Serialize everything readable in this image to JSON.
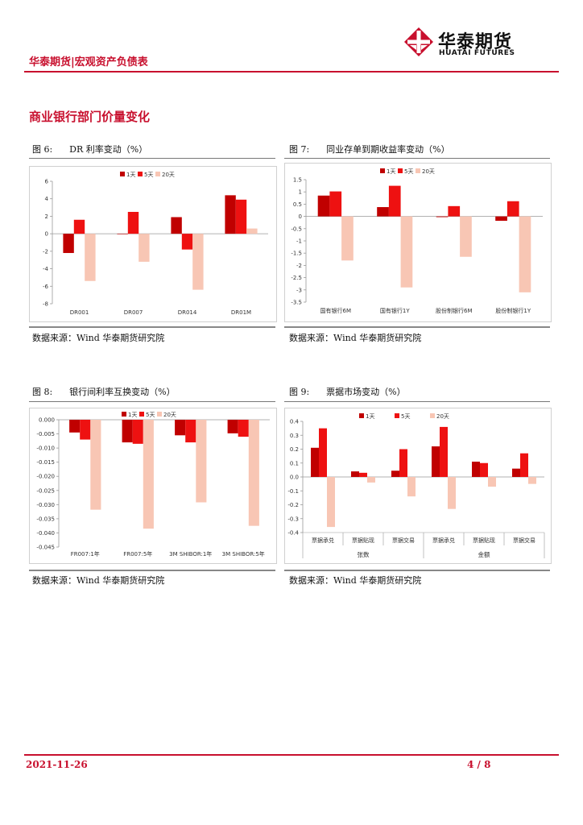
{
  "header": {
    "title": "华泰期货|宏观资产负债表",
    "logo_cn": "华泰期货",
    "logo_en": "HUATAI FUTURES"
  },
  "section": {
    "title": "商业银行部门价量变化"
  },
  "colors": {
    "brand": "#c8102e",
    "series_1d": "#c00000",
    "series_5d": "#ee1111",
    "series_20d": "#f8c6b4"
  },
  "figures": [
    {
      "caption": "图 6:      DR 利率变动（%）",
      "source": "数据来源：Wind 华泰期货研究院"
    },
    {
      "caption": "图 7:      同业存单到期收益率变动（%）",
      "source": "数据来源：Wind 华泰期货研究院"
    },
    {
      "caption": "图 8:      银行间利率互换变动（%）",
      "source": "数据来源：Wind 华泰期货研究院"
    },
    {
      "caption": "图 9:      票据市场变动（%）",
      "source": "数据来源：Wind 华泰期货研究院"
    }
  ],
  "chart_data": [
    {
      "type": "bar",
      "legend": [
        "1天",
        "5天",
        "20天"
      ],
      "legend_position": "top",
      "categories": [
        "DR001",
        "DR007",
        "DR014",
        "DR01M"
      ],
      "series": [
        {
          "name": "1天",
          "values": [
            -2.2,
            0,
            1.9,
            4.4
          ]
        },
        {
          "name": "5天",
          "values": [
            1.6,
            2.5,
            -1.8,
            3.9
          ]
        },
        {
          "name": "20天",
          "values": [
            -5.4,
            -3.2,
            -6.4,
            0.6
          ]
        }
      ],
      "ylim": [
        -8,
        6
      ],
      "yticks": [
        6,
        4,
        2,
        0,
        -2,
        -4,
        -6,
        -8
      ],
      "ytick_labels": [
        "6",
        "4",
        "2",
        "0",
        "-2",
        "-4",
        "-6",
        "-8"
      ],
      "grid": false
    },
    {
      "type": "bar",
      "legend": [
        "1天",
        "5天",
        "20天"
      ],
      "legend_position": "top",
      "categories": [
        "国有银行6M",
        "国有银行1Y",
        "股份制银行6M",
        "股份制银行1Y"
      ],
      "series": [
        {
          "name": "1天",
          "values": [
            0.85,
            0.38,
            -0.03,
            -0.18
          ]
        },
        {
          "name": "5天",
          "values": [
            1.02,
            1.25,
            0.42,
            0.62
          ]
        },
        {
          "name": "20天",
          "values": [
            -1.8,
            -2.9,
            -1.65,
            -3.1
          ]
        }
      ],
      "ylim": [
        -3.5,
        1.5
      ],
      "yticks": [
        1.5,
        1,
        0.5,
        0,
        -0.5,
        -1,
        -1.5,
        -2,
        -2.5,
        -3,
        -3.5
      ],
      "ytick_labels": [
        "1.5",
        "1",
        "0.5",
        "0",
        "-0.5",
        "-1",
        "-1.5",
        "-2",
        "-2.5",
        "-3",
        "-3.5"
      ],
      "grid": false
    },
    {
      "type": "bar",
      "legend": [
        "1天",
        "5天",
        "20天"
      ],
      "legend_position": "top",
      "categories": [
        "FR007:1年",
        "FR007:5年",
        "3M SHIBOR:1年",
        "3M SHIBOR:5年"
      ],
      "series": [
        {
          "name": "1天",
          "values": [
            -0.0045,
            -0.008,
            -0.0055,
            -0.0048
          ]
        },
        {
          "name": "5天",
          "values": [
            -0.007,
            -0.0085,
            -0.008,
            -0.006
          ]
        },
        {
          "name": "20天",
          "values": [
            -0.0318,
            -0.0385,
            -0.0292,
            -0.0375
          ]
        }
      ],
      "ylim": [
        -0.045,
        0
      ],
      "yticks": [
        0,
        -0.005,
        -0.01,
        -0.015,
        -0.02,
        -0.025,
        -0.03,
        -0.035,
        -0.04,
        -0.045
      ],
      "ytick_labels": [
        "0.000",
        "-0.005",
        "-0.010",
        "-0.015",
        "-0.020",
        "-0.025",
        "-0.030",
        "-0.035",
        "-0.040",
        "-0.045"
      ],
      "grid": false
    },
    {
      "type": "bar",
      "legend": [
        "1天",
        "5天",
        "20天"
      ],
      "legend_position": "top",
      "categories": [
        "票据承兑",
        "票据贴现",
        "票据交易",
        "票据承兑",
        "票据贴现",
        "票据交易"
      ],
      "groups": [
        "张数",
        "金额"
      ],
      "series": [
        {
          "name": "1天",
          "values": [
            0.21,
            0.04,
            0.045,
            0.22,
            0.11,
            0.06
          ]
        },
        {
          "name": "5天",
          "values": [
            0.35,
            0.03,
            0.2,
            0.36,
            0.1,
            0.17
          ]
        },
        {
          "name": "20天",
          "values": [
            -0.36,
            -0.04,
            -0.14,
            -0.23,
            -0.07,
            -0.05
          ]
        }
      ],
      "ylim": [
        -0.4,
        0.4
      ],
      "yticks": [
        0.4,
        0.3,
        0.2,
        0.1,
        0,
        -0.1,
        -0.2,
        -0.3,
        -0.4
      ],
      "ytick_labels": [
        "0.4",
        "0.3",
        "0.2",
        "0.1",
        "0.0",
        "-0.1",
        "-0.2",
        "-0.3",
        "-0.4"
      ],
      "grid": false
    }
  ],
  "footer": {
    "date": "2021-11-26",
    "page": "4 / 8"
  }
}
